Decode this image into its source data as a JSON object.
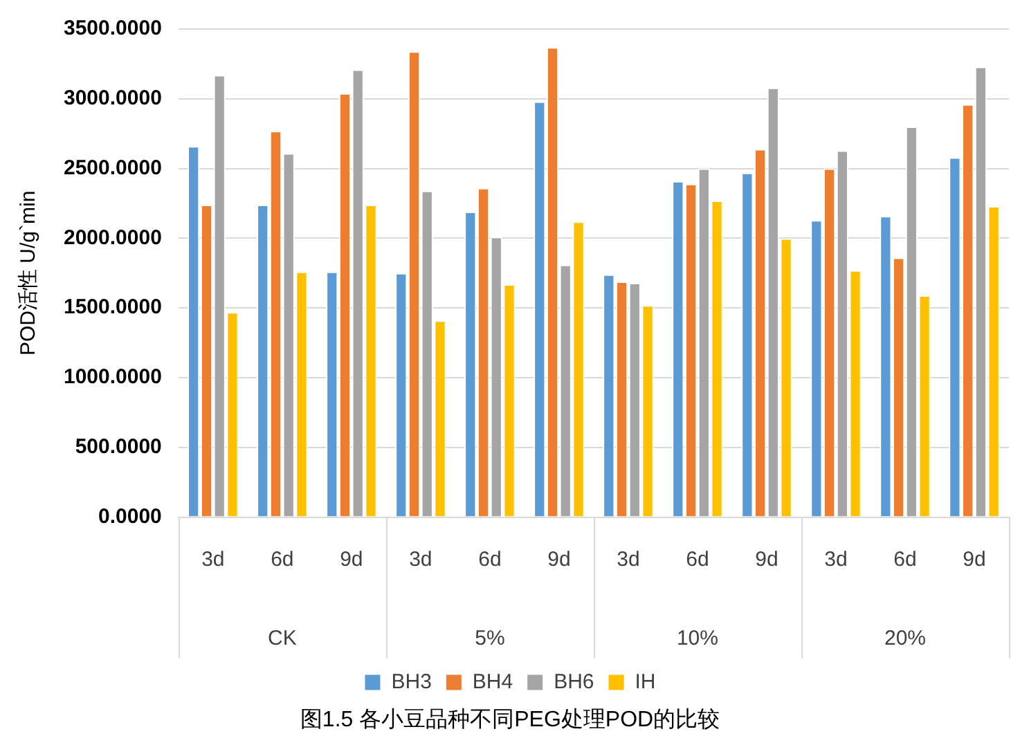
{
  "chart_data": {
    "type": "bar",
    "title": "图1.5 各小豆品种不同PEG处理POD的比较",
    "ylabel": "POD活性 U/g`min",
    "categories": [
      "3d",
      "6d",
      "9d",
      "3d",
      "6d",
      "9d",
      "3d",
      "6d",
      "9d",
      "3d",
      "6d",
      "9d"
    ],
    "annotations": [
      "CK",
      "5%",
      "10%",
      "20%"
    ],
    "series": [
      {
        "name": "BH3",
        "color": "#5b9bd5",
        "values": [
          2660,
          2240,
          1760,
          1750,
          2190,
          2980,
          1740,
          2410,
          2470,
          2130,
          2160,
          2580
        ]
      },
      {
        "name": "BH4",
        "color": "#ed7d31",
        "values": [
          2240,
          2770,
          3040,
          3340,
          2360,
          3370,
          1690,
          2390,
          2640,
          2500,
          1860,
          2960
        ]
      },
      {
        "name": "BH6",
        "color": "#a5a5a5",
        "values": [
          3170,
          2610,
          3210,
          2340,
          2010,
          1810,
          1680,
          2500,
          3080,
          2630,
          2800,
          3230
        ]
      },
      {
        "name": "IH",
        "color": "#ffc000",
        "values": [
          1470,
          1760,
          2240,
          1410,
          1670,
          2120,
          1520,
          2270,
          2000,
          1770,
          1590,
          2230
        ]
      }
    ],
    "ylim": [
      0,
      3500
    ],
    "yticks": [
      {
        "value": 0,
        "label": "0.0000"
      },
      {
        "value": 500,
        "label": "500.0000"
      },
      {
        "value": 1000,
        "label": "1000.0000"
      },
      {
        "value": 1500,
        "label": "1500.0000"
      },
      {
        "value": 2000,
        "label": "2000.0000"
      },
      {
        "value": 2500,
        "label": "2500.0000"
      },
      {
        "value": 3000,
        "label": "3000.0000"
      },
      {
        "value": 3500,
        "label": "3500.0000"
      }
    ],
    "grid": "y",
    "legend": "bottom"
  }
}
